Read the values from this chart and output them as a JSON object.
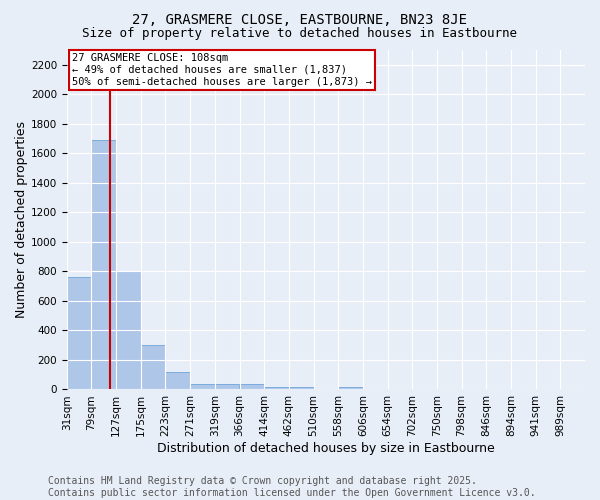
{
  "title": "27, GRASMERE CLOSE, EASTBOURNE, BN23 8JE",
  "subtitle": "Size of property relative to detached houses in Eastbourne",
  "xlabel": "Distribution of detached houses by size in Eastbourne",
  "ylabel": "Number of detached properties",
  "bin_labels": [
    "31sqm",
    "79sqm",
    "127sqm",
    "175sqm",
    "223sqm",
    "271sqm",
    "319sqm",
    "366sqm",
    "414sqm",
    "462sqm",
    "510sqm",
    "558sqm",
    "606sqm",
    "654sqm",
    "702sqm",
    "750sqm",
    "798sqm",
    "846sqm",
    "894sqm",
    "941sqm",
    "989sqm"
  ],
  "bar_values": [
    760,
    1690,
    800,
    300,
    115,
    40,
    35,
    35,
    20,
    15,
    0,
    20,
    0,
    0,
    0,
    0,
    0,
    0,
    0,
    0,
    0
  ],
  "bar_color": "#aec6e8",
  "bar_edge_color": "#5b9bd5",
  "background_color": "#e8eef7",
  "grid_color": "#ffffff",
  "red_line_x": 1.77,
  "annotation_text": "27 GRASMERE CLOSE: 108sqm\n← 49% of detached houses are smaller (1,837)\n50% of semi-detached houses are larger (1,873) →",
  "annotation_box_color": "#ffffff",
  "annotation_border_color": "#cc0000",
  "ylim": [
    0,
    2300
  ],
  "yticks": [
    0,
    200,
    400,
    600,
    800,
    1000,
    1200,
    1400,
    1600,
    1800,
    2000,
    2200
  ],
  "footer_line1": "Contains HM Land Registry data © Crown copyright and database right 2025.",
  "footer_line2": "Contains public sector information licensed under the Open Government Licence v3.0.",
  "title_fontsize": 10,
  "subtitle_fontsize": 9,
  "axis_label_fontsize": 9,
  "tick_fontsize": 7.5,
  "annotation_fontsize": 7.5,
  "footer_fontsize": 7
}
